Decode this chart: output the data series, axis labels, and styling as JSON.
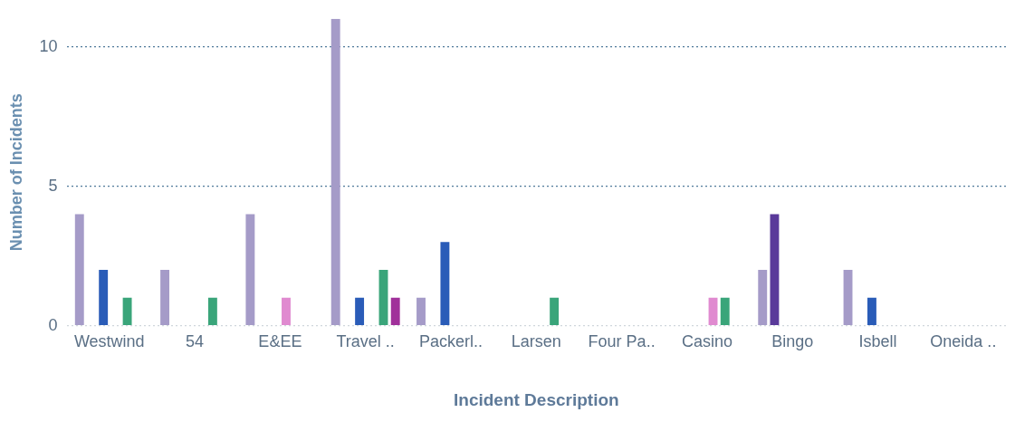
{
  "chart_data": {
    "type": "bar",
    "xlabel": "Incident Description",
    "ylabel": "Number of Incidents",
    "categories": [
      "Westwind",
      "54",
      "E&EE",
      "Travel ..",
      "Packerl..",
      "Larsen",
      "Four Pa..",
      "Casino",
      "Bingo",
      "Isbell",
      "Oneida .."
    ],
    "series": [
      {
        "color": "#a59bc8",
        "values": [
          4,
          2,
          4,
          11,
          1,
          null,
          null,
          null,
          2,
          2,
          null
        ]
      },
      {
        "color": "#5a3a9a",
        "values": [
          null,
          null,
          null,
          null,
          null,
          null,
          null,
          null,
          4,
          null,
          null
        ]
      },
      {
        "color": "#2a5cb8",
        "values": [
          2,
          null,
          null,
          1,
          3,
          null,
          null,
          null,
          null,
          1,
          null
        ]
      },
      {
        "color": "#e08ad0",
        "values": [
          null,
          null,
          1,
          null,
          null,
          null,
          null,
          1,
          null,
          null,
          null
        ]
      },
      {
        "color": "#3aa57a",
        "values": [
          1,
          1,
          null,
          2,
          null,
          1,
          null,
          1,
          null,
          null,
          null
        ]
      },
      {
        "color": "#a0309a",
        "values": [
          null,
          null,
          null,
          1,
          null,
          null,
          null,
          null,
          null,
          null,
          null
        ]
      }
    ],
    "ylim": [
      0,
      11
    ],
    "yticks": [
      0,
      5,
      10
    ],
    "grid": "y",
    "legend": false
  }
}
